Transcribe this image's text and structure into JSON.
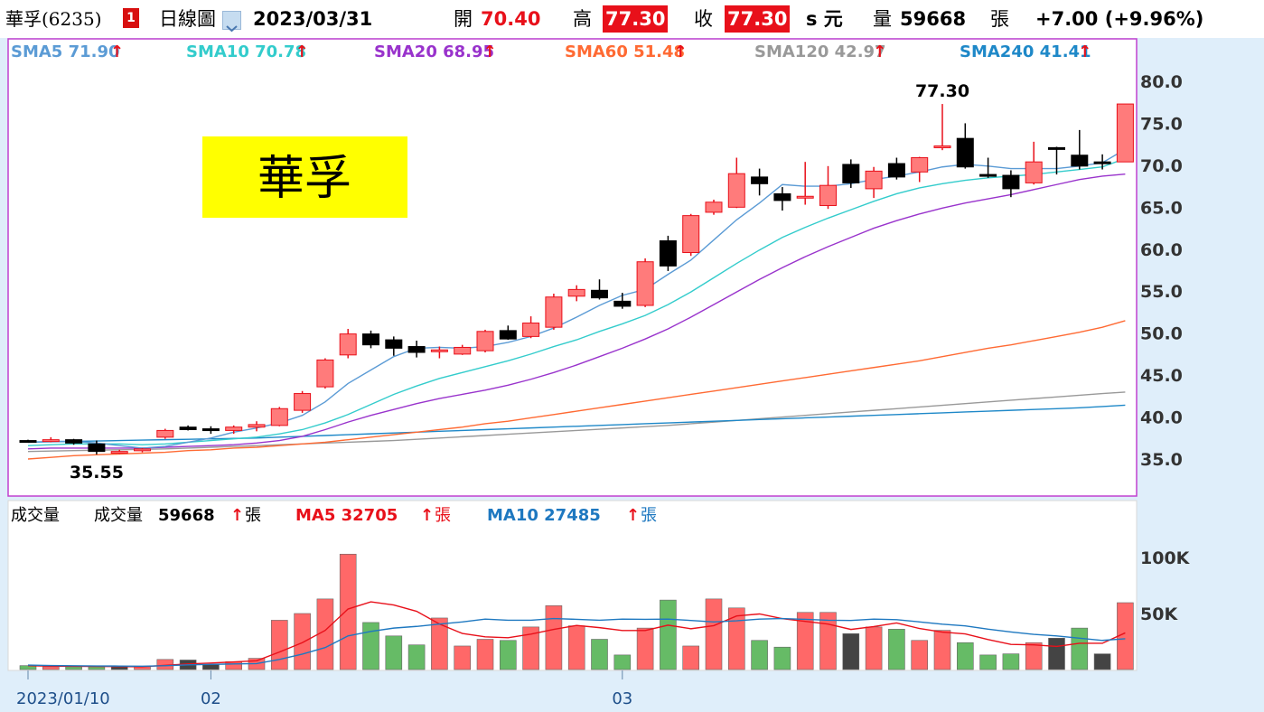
{
  "header": {
    "stock": "華孚(6235)",
    "badge": "1",
    "period": "日線圖",
    "date": "2023/03/31",
    "open_label": "開",
    "open": "70.40",
    "high_label": "高",
    "high": "77.30",
    "close_label": "收",
    "close": "77.30",
    "unit": "s 元",
    "vol_label": "量",
    "volume": "59668",
    "vol_unit": "張",
    "change": "+7.00 (+9.96%)"
  },
  "name_box": "華孚",
  "colors": {
    "up": "#ff7b7b",
    "up_border": "#e8101a",
    "down": "#000000",
    "vol_up": "#ff6868",
    "vol_down": "#66bb66",
    "vol_flat": "#444444",
    "panel_border": "#c040d0",
    "sma5": "#5b9bd5",
    "sma10": "#33cccc",
    "sma20": "#9933cc",
    "sma60": "#ff6a33",
    "sma120": "#999999",
    "sma240": "#1e88c8",
    "ma5_vol": "#e8101a",
    "ma10_vol": "#1e78c0",
    "name_box_bg": "#ffff00"
  },
  "legend": [
    {
      "label": "SMA5 71.90",
      "arrow": "↑",
      "color": "#5b9bd5"
    },
    {
      "label": "SMA10 70.78",
      "arrow": "↑",
      "color": "#33cccc"
    },
    {
      "label": "SMA20 68.95",
      "arrow": "↑",
      "color": "#9933cc"
    },
    {
      "label": "SMA60 51.48",
      "arrow": "↑",
      "color": "#ff6a33"
    },
    {
      "label": "SMA120 42.97",
      "arrow": "↑",
      "color": "#999999"
    },
    {
      "label": "SMA240 41.41",
      "arrow": "↑",
      "color": "#1e88c8"
    }
  ],
  "volume_legend": {
    "title": "成交量",
    "vol_label": "成交量",
    "vol_value": "59668",
    "ma5": "MA5 32705",
    "ma10": "MA10 27485",
    "arrow": "↑",
    "unit": "張"
  },
  "chart_data": {
    "type": "candlestick",
    "price_ticks": [
      "80.0",
      "75.0",
      "70.0",
      "65.0",
      "60.0",
      "55.0",
      "50.0",
      "45.0",
      "40.0",
      "35.0"
    ],
    "price_range": [
      30.5,
      82.5
    ],
    "volume_ticks": [
      "100K",
      "50K"
    ],
    "volume_range": [
      0,
      105000
    ],
    "x_labels": [
      {
        "index": 0,
        "label": "2023/01/10"
      },
      {
        "index": 8,
        "label": "02"
      },
      {
        "index": 26,
        "label": "03"
      }
    ],
    "annotations": [
      {
        "label": "77.30",
        "index": 40,
        "price": 77.3
      },
      {
        "label": "35.55",
        "index": 3,
        "price": 35.55
      }
    ],
    "candles": [
      [
        37.2,
        37.3,
        37.0,
        37.1,
        3500
      ],
      [
        37.1,
        37.6,
        37.0,
        37.3,
        2500
      ],
      [
        37.3,
        37.4,
        36.7,
        36.9,
        2500
      ],
      [
        36.8,
        37.2,
        35.55,
        35.9,
        2500
      ],
      [
        35.9,
        36.1,
        35.6,
        35.9,
        2500
      ],
      [
        36.0,
        36.3,
        35.8,
        36.2,
        2500
      ],
      [
        37.6,
        38.6,
        37.4,
        38.4,
        9000
      ],
      [
        38.8,
        39.0,
        38.4,
        38.5,
        8500
      ],
      [
        38.6,
        38.9,
        38.0,
        38.5,
        4500
      ],
      [
        38.4,
        39.0,
        38.0,
        38.8,
        7000
      ],
      [
        38.8,
        39.5,
        38.3,
        39.1,
        10000
      ],
      [
        39.0,
        41.2,
        38.9,
        41.0,
        44000
      ],
      [
        40.8,
        43.1,
        40.5,
        42.8,
        50000
      ],
      [
        43.6,
        47.0,
        43.4,
        46.8,
        63000
      ],
      [
        47.4,
        50.5,
        47.0,
        49.9,
        103000
      ],
      [
        49.9,
        50.3,
        48.2,
        48.6,
        42000
      ],
      [
        49.2,
        49.6,
        47.3,
        48.2,
        30000
      ],
      [
        48.4,
        49.1,
        47.1,
        47.7,
        22000
      ],
      [
        47.8,
        48.4,
        47.0,
        48.0,
        46000
      ],
      [
        47.5,
        48.6,
        47.4,
        48.3,
        21000
      ],
      [
        47.9,
        50.4,
        47.7,
        50.2,
        27000
      ],
      [
        50.3,
        50.9,
        49.2,
        49.3,
        26000
      ],
      [
        49.6,
        52.0,
        49.4,
        51.2,
        38000
      ],
      [
        50.7,
        54.7,
        50.4,
        54.3,
        57000
      ],
      [
        54.4,
        55.7,
        53.8,
        55.2,
        39000
      ],
      [
        55.1,
        56.4,
        54.0,
        54.2,
        27000
      ],
      [
        53.8,
        54.8,
        52.9,
        53.2,
        13000
      ],
      [
        53.3,
        58.9,
        53.1,
        58.5,
        37000
      ],
      [
        61.0,
        61.6,
        57.4,
        58.0,
        62000
      ],
      [
        59.6,
        64.2,
        59.2,
        64.0,
        21000
      ],
      [
        64.4,
        65.9,
        64.1,
        65.6,
        63000
      ],
      [
        65.0,
        70.9,
        64.9,
        69.0,
        55000
      ],
      [
        68.6,
        69.6,
        66.4,
        67.8,
        26000
      ],
      [
        66.6,
        67.4,
        64.6,
        65.8,
        20000
      ],
      [
        66.2,
        70.4,
        65.3,
        66.3,
        51000
      ],
      [
        65.2,
        69.9,
        64.8,
        67.6,
        51000
      ],
      [
        70.1,
        70.7,
        67.3,
        67.9,
        32000
      ],
      [
        67.2,
        69.8,
        66.1,
        69.3,
        38000
      ],
      [
        70.2,
        70.9,
        68.3,
        68.6,
        36000
      ],
      [
        69.2,
        71.0,
        68.0,
        70.9,
        26000
      ],
      [
        72.2,
        77.3,
        71.8,
        72.3,
        35000
      ],
      [
        73.2,
        75.0,
        69.6,
        69.8,
        24000
      ],
      [
        68.9,
        70.9,
        68.5,
        68.8,
        13000
      ],
      [
        68.8,
        69.4,
        66.2,
        67.2,
        14000
      ],
      [
        67.9,
        72.8,
        67.7,
        70.4,
        24000
      ],
      [
        72.1,
        72.2,
        68.9,
        72.0,
        28000
      ],
      [
        71.2,
        74.2,
        69.5,
        69.9,
        37000
      ],
      [
        70.4,
        71.3,
        69.5,
        70.3,
        14000
      ],
      [
        70.4,
        77.3,
        70.4,
        77.3,
        59668
      ]
    ],
    "sma5": [
      37.0,
      37.1,
      37.1,
      36.9,
      36.6,
      36.3,
      36.5,
      37.0,
      37.5,
      38.2,
      38.7,
      39.3,
      40.2,
      41.8,
      44.0,
      45.6,
      47.2,
      48.2,
      48.3,
      48.2,
      48.4,
      48.9,
      49.6,
      50.6,
      51.9,
      53.3,
      54.5,
      55.2,
      57.0,
      58.7,
      61.1,
      63.5,
      65.5,
      67.7,
      67.5,
      67.5,
      67.8,
      68.3,
      68.7,
      69.2,
      69.8,
      70.1,
      69.9,
      69.6,
      69.6,
      69.6,
      69.9,
      70.3,
      71.9
    ],
    "sma10": [
      36.6,
      36.7,
      36.8,
      36.8,
      36.8,
      36.7,
      36.8,
      37.0,
      37.2,
      37.4,
      37.6,
      38.0,
      38.5,
      39.3,
      40.3,
      41.5,
      42.7,
      43.7,
      44.6,
      45.3,
      46.0,
      46.7,
      47.5,
      48.4,
      49.2,
      50.2,
      51.1,
      52.1,
      53.4,
      54.9,
      56.6,
      58.3,
      59.9,
      61.4,
      62.6,
      63.7,
      64.7,
      65.7,
      66.6,
      67.3,
      67.8,
      68.2,
      68.5,
      68.7,
      68.9,
      69.2,
      69.5,
      69.8,
      70.8
    ],
    "sma20": [
      36.2,
      36.3,
      36.3,
      36.3,
      36.3,
      36.3,
      36.4,
      36.5,
      36.6,
      36.7,
      36.9,
      37.2,
      37.7,
      38.5,
      39.4,
      40.2,
      40.9,
      41.6,
      42.2,
      42.7,
      43.2,
      43.8,
      44.5,
      45.3,
      46.2,
      47.2,
      48.2,
      49.3,
      50.5,
      51.9,
      53.4,
      54.9,
      56.4,
      57.8,
      59.1,
      60.3,
      61.4,
      62.5,
      63.4,
      64.2,
      64.9,
      65.5,
      66.0,
      66.5,
      67.1,
      67.7,
      68.3,
      68.7,
      68.95
    ],
    "sma60": [
      35.0,
      35.2,
      35.4,
      35.5,
      35.6,
      35.7,
      35.8,
      36.0,
      36.1,
      36.3,
      36.4,
      36.6,
      36.8,
      37.0,
      37.3,
      37.6,
      37.9,
      38.2,
      38.5,
      38.8,
      39.2,
      39.5,
      39.9,
      40.3,
      40.7,
      41.1,
      41.5,
      41.9,
      42.3,
      42.7,
      43.1,
      43.5,
      43.9,
      44.3,
      44.7,
      45.1,
      45.5,
      45.9,
      46.3,
      46.7,
      47.2,
      47.7,
      48.2,
      48.6,
      49.1,
      49.6,
      50.1,
      50.7,
      51.48
    ],
    "sma120": [
      35.9,
      35.95,
      36.0,
      36.05,
      36.1,
      36.15,
      36.2,
      36.3,
      36.4,
      36.5,
      36.6,
      36.7,
      36.8,
      36.9,
      37.0,
      37.1,
      37.2,
      37.35,
      37.5,
      37.65,
      37.8,
      37.95,
      38.1,
      38.25,
      38.4,
      38.55,
      38.7,
      38.85,
      39.0,
      39.2,
      39.4,
      39.6,
      39.8,
      40.0,
      40.2,
      40.4,
      40.6,
      40.8,
      41.0,
      41.2,
      41.4,
      41.6,
      41.8,
      42.0,
      42.2,
      42.4,
      42.6,
      42.8,
      42.97
    ],
    "sma240": [
      37.0,
      37.05,
      37.1,
      37.15,
      37.2,
      37.25,
      37.3,
      37.35,
      37.4,
      37.45,
      37.5,
      37.6,
      37.7,
      37.8,
      37.9,
      38.0,
      38.1,
      38.2,
      38.3,
      38.4,
      38.5,
      38.6,
      38.7,
      38.8,
      38.9,
      39.0,
      39.1,
      39.2,
      39.3,
      39.4,
      39.5,
      39.6,
      39.7,
      39.8,
      39.9,
      40.0,
      40.1,
      40.2,
      40.3,
      40.4,
      40.5,
      40.6,
      40.7,
      40.8,
      40.9,
      41.0,
      41.1,
      41.25,
      41.41
    ],
    "ma5_volume": [
      3500,
      3000,
      2900,
      2800,
      2700,
      2500,
      3800,
      5000,
      5800,
      6800,
      7800,
      15600,
      24000,
      34900,
      54000,
      60400,
      57600,
      52000,
      40600,
      32200,
      29200,
      28400,
      31600,
      35800,
      39400,
      37400,
      34800,
      34800,
      39600,
      36400,
      39200,
      47800,
      49600,
      45400,
      43000,
      40600,
      35800,
      38400,
      41600,
      36600,
      33400,
      31800,
      26800,
      22400,
      22000,
      20600,
      23400,
      23400,
      32705
    ],
    "ma10_volume": [
      4000,
      3600,
      3400,
      3200,
      3100,
      3000,
      3400,
      4200,
      4600,
      5000,
      5300,
      9000,
      13800,
      19600,
      30000,
      34000,
      37000,
      38500,
      40600,
      42500,
      45000,
      44000,
      44000,
      45500,
      44800,
      44000,
      45000,
      44800,
      45000,
      43800,
      42500,
      43500,
      45000,
      45500,
      44800,
      44000,
      43800,
      45000,
      44500,
      42500,
      40500,
      39000,
      36000,
      33500,
      31400,
      30000,
      28000,
      26000,
      27485
    ]
  }
}
